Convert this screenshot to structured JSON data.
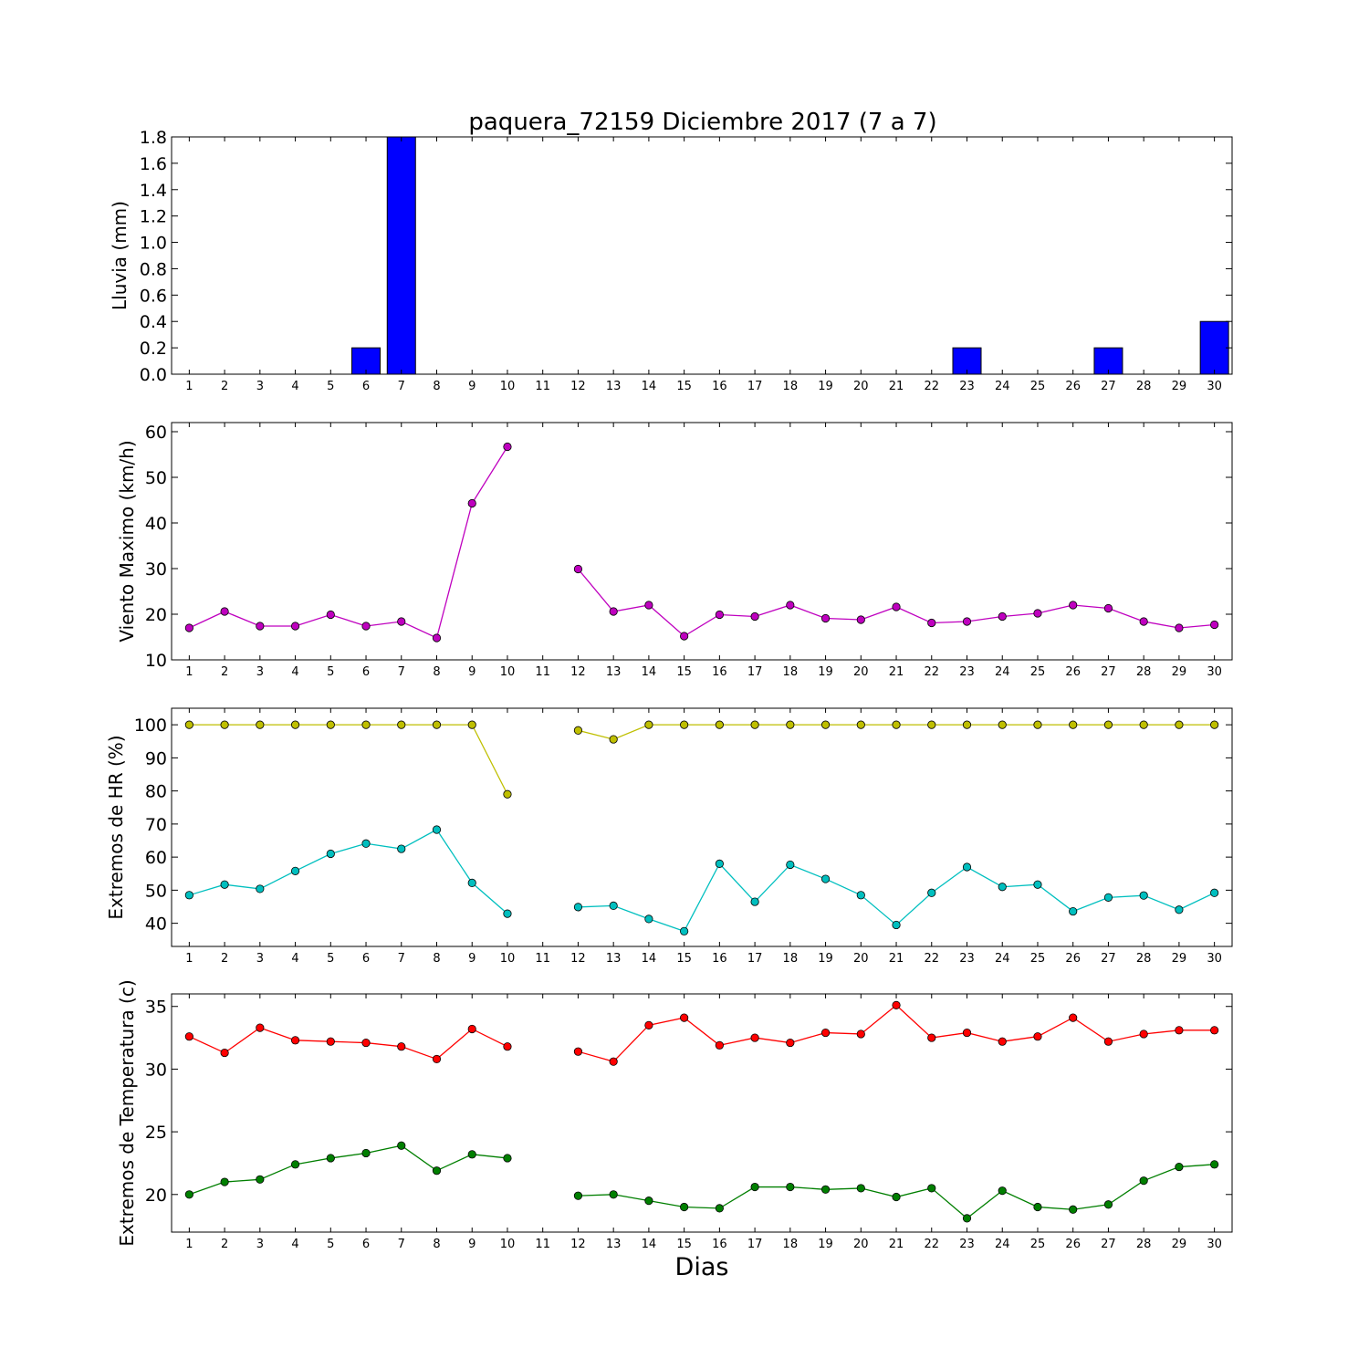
{
  "figure": {
    "title": "paquera_72159 Diciembre 2017  (7 a 7)",
    "xlabel": "Dias"
  },
  "chart_data": [
    {
      "type": "bar",
      "ylabel": "Lluvia (mm)",
      "ylim": [
        0,
        1.8
      ],
      "yticks": [
        0.0,
        0.2,
        0.4,
        0.6,
        0.8,
        1.0,
        1.2,
        1.4,
        1.6,
        1.8
      ],
      "x": [
        1,
        2,
        3,
        4,
        5,
        6,
        7,
        8,
        9,
        10,
        11,
        12,
        13,
        14,
        15,
        16,
        17,
        18,
        19,
        20,
        21,
        22,
        23,
        24,
        25,
        26,
        27,
        28,
        29,
        30
      ],
      "xlim": [
        0.5,
        30.5
      ],
      "series": [
        {
          "color": "#0000ff",
          "values": [
            0,
            0,
            0,
            0,
            0,
            0.2,
            1.8,
            0,
            0,
            0,
            0,
            0,
            0,
            0,
            0,
            0,
            0,
            0,
            0,
            0,
            0,
            0,
            0.2,
            0,
            0,
            0,
            0.2,
            0,
            0,
            0.4
          ]
        }
      ]
    },
    {
      "type": "line",
      "ylabel": "Viento Maximo (km/h)",
      "ylim": [
        10,
        62
      ],
      "yticks": [
        10,
        20,
        30,
        40,
        50,
        60
      ],
      "x": [
        1,
        2,
        3,
        4,
        5,
        6,
        7,
        8,
        9,
        10,
        11,
        12,
        13,
        14,
        15,
        16,
        17,
        18,
        19,
        20,
        21,
        22,
        23,
        24,
        25,
        26,
        27,
        28,
        29,
        30
      ],
      "xlim": [
        0.5,
        30.5
      ],
      "series": [
        {
          "color": "#bf00bf",
          "values": [
            17.0,
            20.6,
            17.4,
            17.4,
            19.9,
            17.4,
            18.4,
            14.8,
            44.3,
            56.7,
            null,
            29.9,
            20.6,
            22.0,
            15.2,
            19.9,
            19.5,
            22.0,
            19.1,
            18.8,
            21.6,
            18.1,
            18.4,
            19.5,
            20.2,
            22.0,
            21.3,
            18.4,
            17.0,
            17.7
          ]
        }
      ]
    },
    {
      "type": "line",
      "ylabel": "Extremos de HR (%)",
      "ylim": [
        33,
        105
      ],
      "yticks": [
        40,
        50,
        60,
        70,
        80,
        90,
        100
      ],
      "x": [
        1,
        2,
        3,
        4,
        5,
        6,
        7,
        8,
        9,
        10,
        11,
        12,
        13,
        14,
        15,
        16,
        17,
        18,
        19,
        20,
        21,
        22,
        23,
        24,
        25,
        26,
        27,
        28,
        29,
        30
      ],
      "xlim": [
        0.5,
        30.5
      ],
      "series": [
        {
          "color": "#bfbf00",
          "values": [
            100,
            100,
            100,
            100,
            100,
            100,
            100,
            100,
            100,
            79,
            null,
            98.3,
            95.6,
            100,
            100,
            100,
            100,
            100,
            100,
            100,
            100,
            100,
            100,
            100,
            100,
            100,
            100,
            100,
            100,
            100
          ]
        },
        {
          "color": "#00bfbf",
          "values": [
            48.5,
            51.7,
            50.4,
            55.8,
            61.0,
            64.1,
            62.5,
            68.3,
            52.2,
            42.9,
            null,
            44.9,
            45.3,
            41.3,
            37.6,
            58.0,
            46.5,
            57.7,
            53.4,
            48.5,
            39.5,
            49.2,
            57.0,
            51.0,
            51.7,
            43.6,
            47.8,
            48.4,
            44.1,
            49.2
          ]
        }
      ]
    },
    {
      "type": "line",
      "ylabel": "Extremos de Temperatura (c)",
      "ylim": [
        17,
        36
      ],
      "yticks": [
        20,
        25,
        30,
        35
      ],
      "x": [
        1,
        2,
        3,
        4,
        5,
        6,
        7,
        8,
        9,
        10,
        11,
        12,
        13,
        14,
        15,
        16,
        17,
        18,
        19,
        20,
        21,
        22,
        23,
        24,
        25,
        26,
        27,
        28,
        29,
        30
      ],
      "xlim": [
        0.5,
        30.5
      ],
      "series": [
        {
          "color": "#ff0000",
          "values": [
            32.6,
            31.3,
            33.3,
            32.3,
            32.2,
            32.1,
            31.8,
            30.8,
            33.2,
            31.8,
            null,
            31.4,
            30.6,
            33.5,
            34.1,
            31.9,
            32.5,
            32.1,
            32.9,
            32.8,
            35.1,
            32.5,
            32.9,
            32.2,
            32.6,
            34.1,
            32.2,
            32.8,
            33.1,
            33.1
          ]
        },
        {
          "color": "#007f00",
          "values": [
            20.0,
            21.0,
            21.2,
            22.4,
            22.9,
            23.3,
            23.9,
            21.9,
            23.2,
            22.9,
            null,
            19.9,
            20.0,
            19.5,
            19.0,
            18.9,
            20.6,
            20.6,
            20.4,
            20.5,
            19.8,
            20.5,
            18.1,
            20.3,
            19.0,
            18.8,
            19.2,
            21.1,
            22.2,
            22.4
          ]
        }
      ]
    }
  ]
}
